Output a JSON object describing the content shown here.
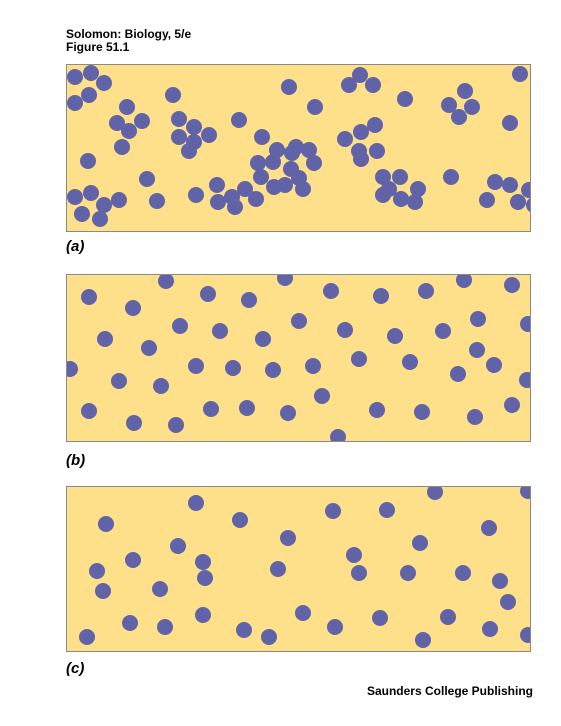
{
  "header": {
    "line1": "Solomon: Biology, 5/e",
    "line2": "Figure 51.1"
  },
  "panels": [
    {
      "label": "(a)",
      "distribution": "clumped",
      "dots": [
        [
          8,
          12
        ],
        [
          24,
          8
        ],
        [
          37,
          18
        ],
        [
          22,
          30
        ],
        [
          8,
          38
        ],
        [
          60,
          42
        ],
        [
          50,
          58
        ],
        [
          62,
          66
        ],
        [
          75,
          56
        ],
        [
          55,
          82
        ],
        [
          106,
          30
        ],
        [
          112,
          54
        ],
        [
          127,
          62
        ],
        [
          112,
          72
        ],
        [
          127,
          77
        ],
        [
          142,
          70
        ],
        [
          122,
          86
        ],
        [
          172,
          55
        ],
        [
          195,
          72
        ],
        [
          210,
          85
        ],
        [
          191,
          98
        ],
        [
          206,
          97
        ],
        [
          224,
          104
        ],
        [
          229,
          82
        ],
        [
          247,
          98
        ],
        [
          232,
          113
        ],
        [
          225,
          88
        ],
        [
          218,
          120
        ],
        [
          236,
          124
        ],
        [
          242,
          85
        ],
        [
          222,
          22
        ],
        [
          248,
          42
        ],
        [
          278,
          74
        ],
        [
          292,
          86
        ],
        [
          294,
          67
        ],
        [
          308,
          60
        ],
        [
          294,
          94
        ],
        [
          310,
          86
        ],
        [
          282,
          20
        ],
        [
          293,
          10
        ],
        [
          306,
          20
        ],
        [
          338,
          34
        ],
        [
          382,
          40
        ],
        [
          398,
          26
        ],
        [
          405,
          42
        ],
        [
          392,
          52
        ],
        [
          443,
          58
        ],
        [
          384,
          112
        ],
        [
          322,
          124
        ],
        [
          333,
          112
        ],
        [
          351,
          124
        ],
        [
          334,
          134
        ],
        [
          316,
          130
        ],
        [
          348,
          137
        ],
        [
          316,
          112
        ],
        [
          453,
          9
        ],
        [
          8,
          132
        ],
        [
          24,
          128
        ],
        [
          37,
          140
        ],
        [
          15,
          149
        ],
        [
          33,
          154
        ],
        [
          52,
          135
        ],
        [
          90,
          136
        ],
        [
          129,
          130
        ],
        [
          150,
          120
        ],
        [
          151,
          137
        ],
        [
          165,
          132
        ],
        [
          178,
          124
        ],
        [
          168,
          142
        ],
        [
          189,
          134
        ],
        [
          194,
          112
        ],
        [
          207,
          122
        ],
        [
          428,
          117
        ],
        [
          443,
          120
        ],
        [
          451,
          137
        ],
        [
          462,
          125
        ],
        [
          467,
          140
        ],
        [
          420,
          135
        ],
        [
          21,
          96
        ],
        [
          80,
          114
        ]
      ]
    },
    {
      "label": "(b)",
      "distribution": "uniform",
      "dots": [
        [
          22,
          22
        ],
        [
          66,
          33
        ],
        [
          99,
          6
        ],
        [
          141,
          19
        ],
        [
          182,
          25
        ],
        [
          218,
          3
        ],
        [
          264,
          16
        ],
        [
          314,
          21
        ],
        [
          359,
          16
        ],
        [
          397,
          5
        ],
        [
          445,
          10
        ],
        [
          461,
          49
        ],
        [
          411,
          44
        ],
        [
          410,
          75
        ],
        [
          376,
          56
        ],
        [
          328,
          61
        ],
        [
          278,
          55
        ],
        [
          232,
          46
        ],
        [
          196,
          64
        ],
        [
          153,
          56
        ],
        [
          113,
          51
        ],
        [
          38,
          64
        ],
        [
          82,
          73
        ],
        [
          129,
          91
        ],
        [
          166,
          93
        ],
        [
          206,
          95
        ],
        [
          246,
          91
        ],
        [
          292,
          84
        ],
        [
          343,
          87
        ],
        [
          391,
          99
        ],
        [
          427,
          90
        ],
        [
          460,
          105
        ],
        [
          3,
          94
        ],
        [
          52,
          106
        ],
        [
          94,
          111
        ],
        [
          22,
          136
        ],
        [
          67,
          148
        ],
        [
          109,
          150
        ],
        [
          144,
          134
        ],
        [
          180,
          133
        ],
        [
          221,
          138
        ],
        [
          255,
          121
        ],
        [
          310,
          135
        ],
        [
          355,
          137
        ],
        [
          408,
          142
        ],
        [
          445,
          130
        ],
        [
          271,
          162
        ]
      ]
    },
    {
      "label": "(c)",
      "distribution": "random",
      "dots": [
        [
          129,
          16
        ],
        [
          173,
          33
        ],
        [
          39,
          37
        ],
        [
          111,
          59
        ],
        [
          136,
          75
        ],
        [
          138,
          91
        ],
        [
          221,
          51
        ],
        [
          266,
          24
        ],
        [
          320,
          23
        ],
        [
          368,
          5
        ],
        [
          461,
          4
        ],
        [
          422,
          41
        ],
        [
          353,
          56
        ],
        [
          287,
          68
        ],
        [
          211,
          82
        ],
        [
          292,
          86
        ],
        [
          341,
          86
        ],
        [
          396,
          86
        ],
        [
          433,
          94
        ],
        [
          30,
          84
        ],
        [
          36,
          104
        ],
        [
          66,
          73
        ],
        [
          93,
          102
        ],
        [
          136,
          128
        ],
        [
          63,
          136
        ],
        [
          98,
          140
        ],
        [
          177,
          143
        ],
        [
          202,
          150
        ],
        [
          236,
          126
        ],
        [
          268,
          140
        ],
        [
          313,
          131
        ],
        [
          381,
          130
        ],
        [
          423,
          142
        ],
        [
          461,
          148
        ],
        [
          356,
          153
        ],
        [
          20,
          150
        ],
        [
          441,
          115
        ]
      ]
    }
  ],
  "colors": {
    "background": "#ffe08a",
    "dot": "#6163a8",
    "border": "#8a8a8a"
  },
  "footer": {
    "publisher": "Saunders College Publishing"
  }
}
